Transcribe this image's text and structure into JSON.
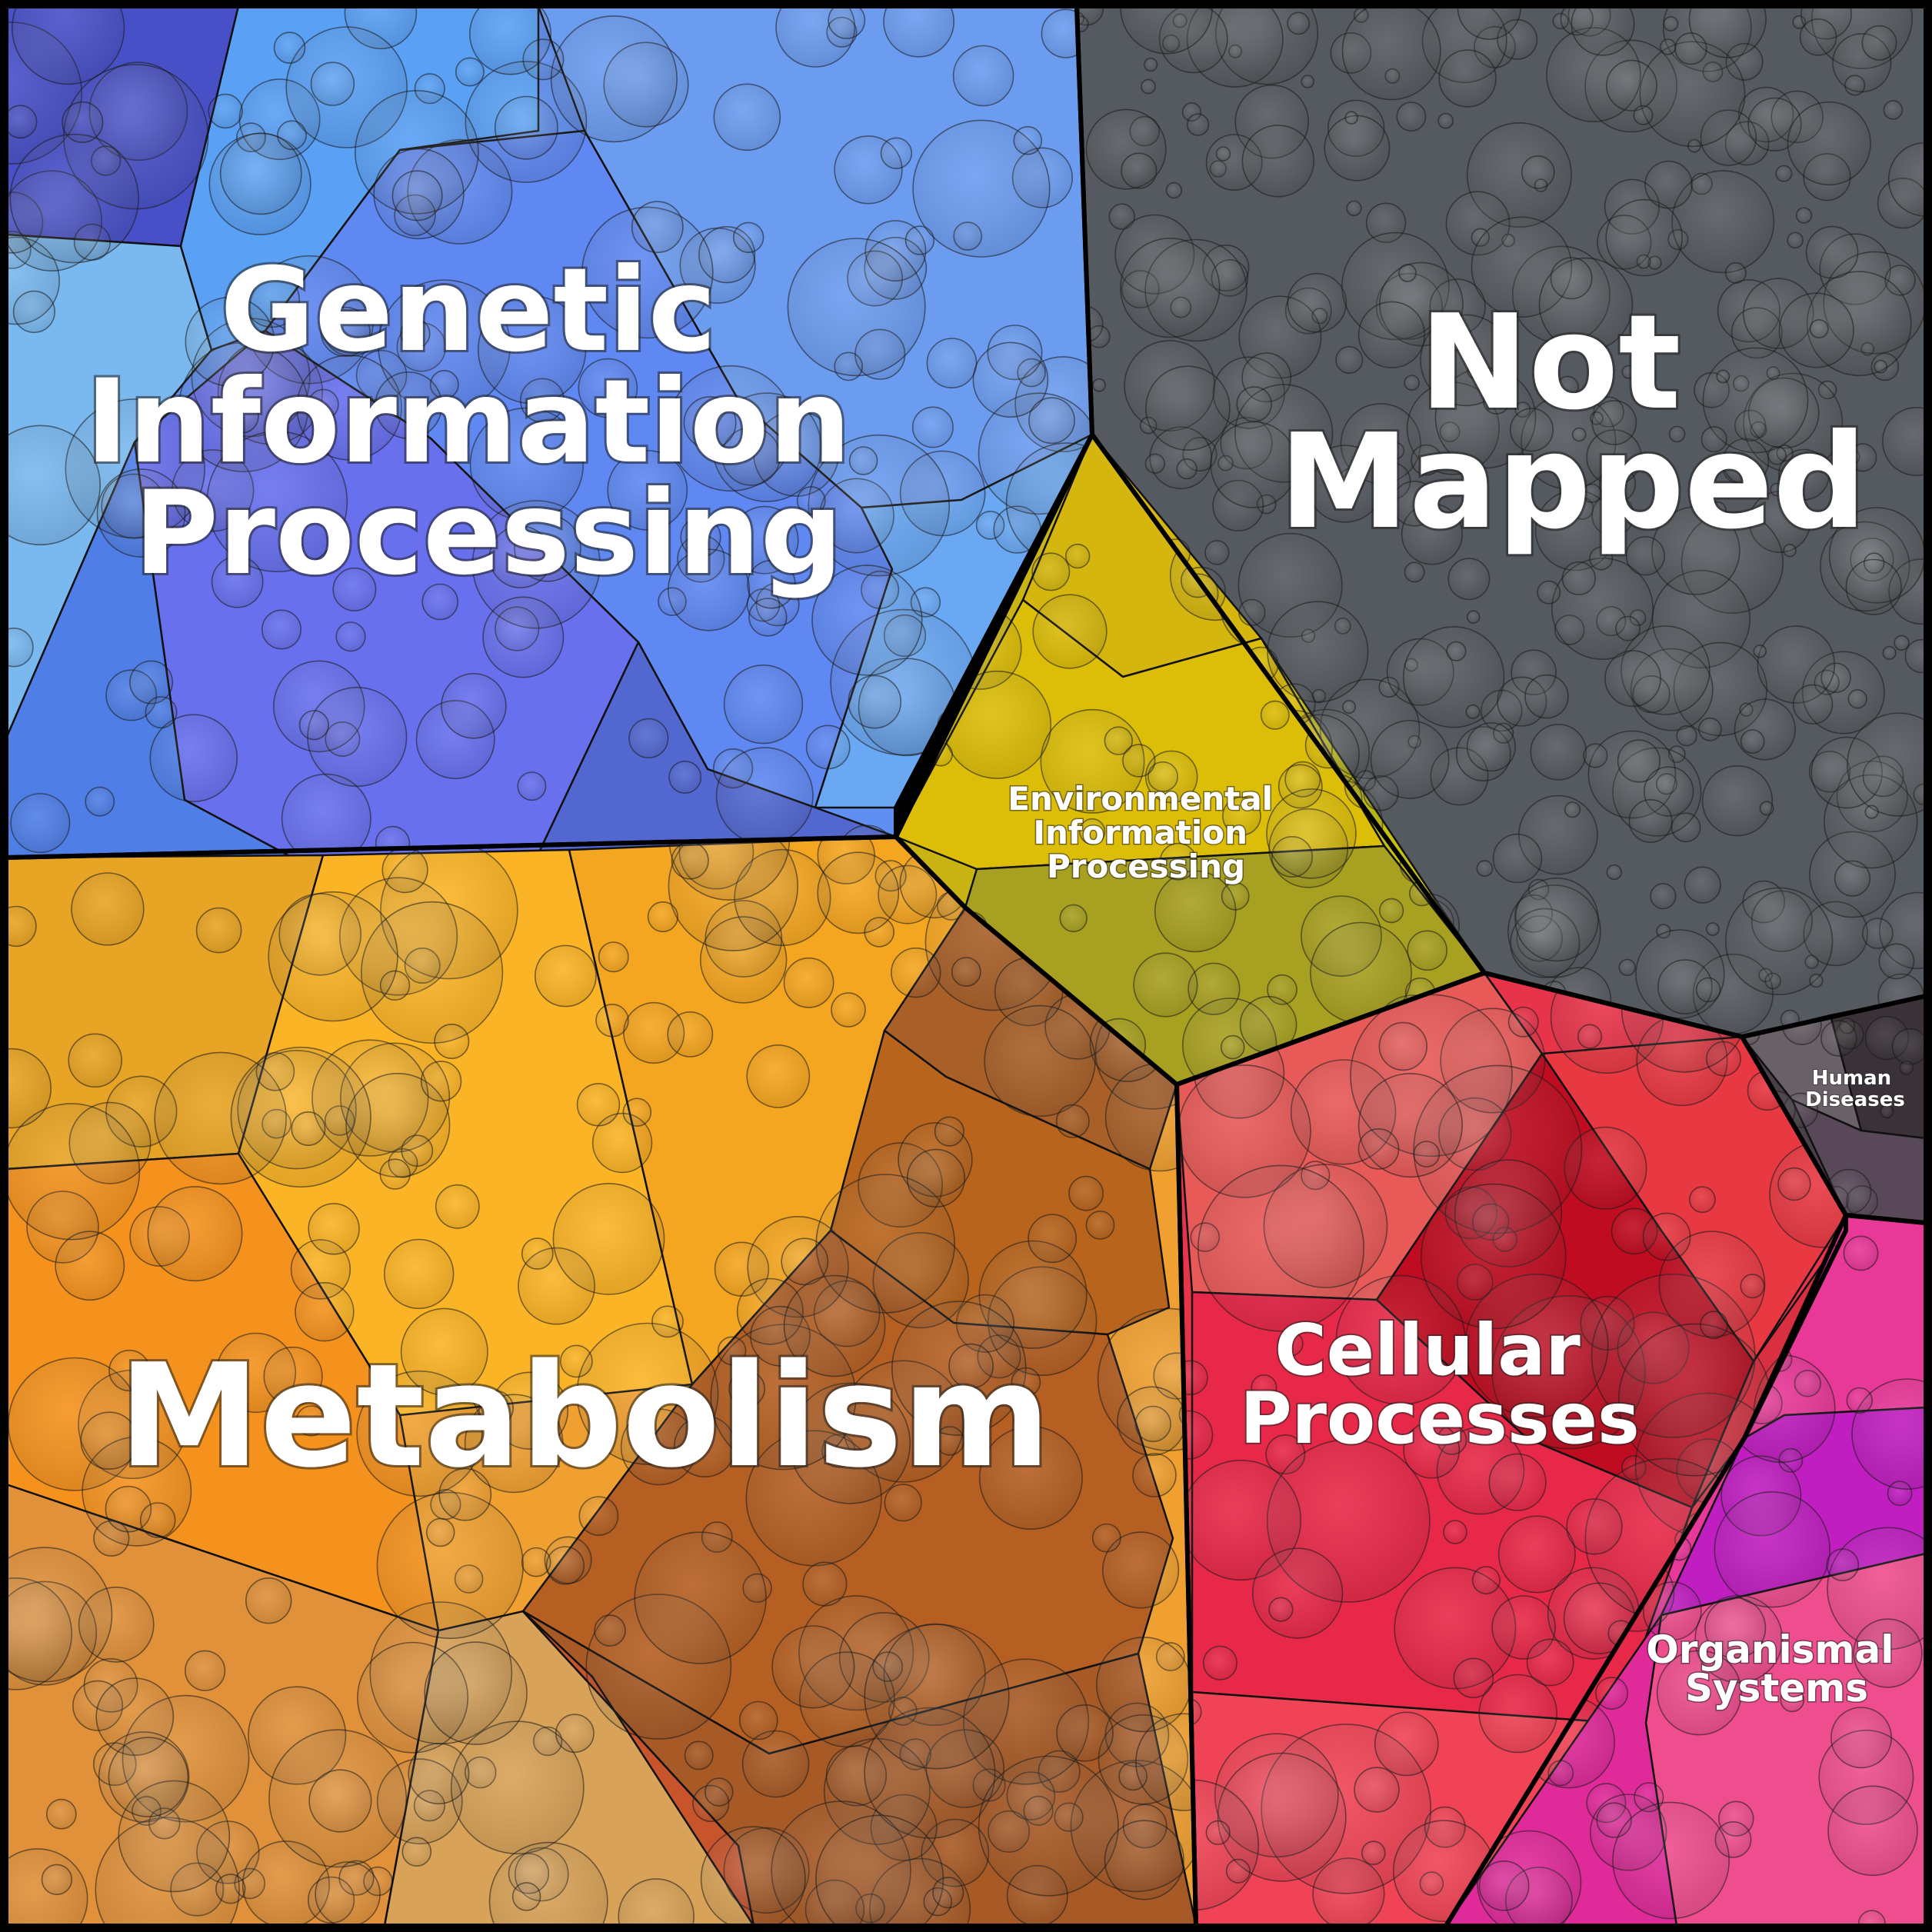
{
  "diagram": {
    "type": "voronoi-treemap",
    "regions": [
      {
        "id": "genetic",
        "label_lines": [
          "Genetic",
          "Information",
          "Processing"
        ],
        "color": "#5f8ff0"
      },
      {
        "id": "not-mapped",
        "label_lines": [
          "Not",
          "Mapped"
        ],
        "color": "#555a60"
      },
      {
        "id": "environmental",
        "label_lines": [
          "Environmental",
          "Information",
          "Processing"
        ],
        "color": "#c9b414"
      },
      {
        "id": "metabolism",
        "label_lines": [
          "Metabolism"
        ],
        "color": "#f0a030"
      },
      {
        "id": "cellular",
        "label_lines": [
          "Cellular",
          "Processes"
        ],
        "color": "#e8344a"
      },
      {
        "id": "human-diseases",
        "label_lines": [
          "Human",
          "Diseases"
        ],
        "color": "#4a4048"
      },
      {
        "id": "organismal",
        "label_lines": [
          "Organismal",
          "Systems"
        ],
        "color": "#e8389a"
      }
    ]
  }
}
